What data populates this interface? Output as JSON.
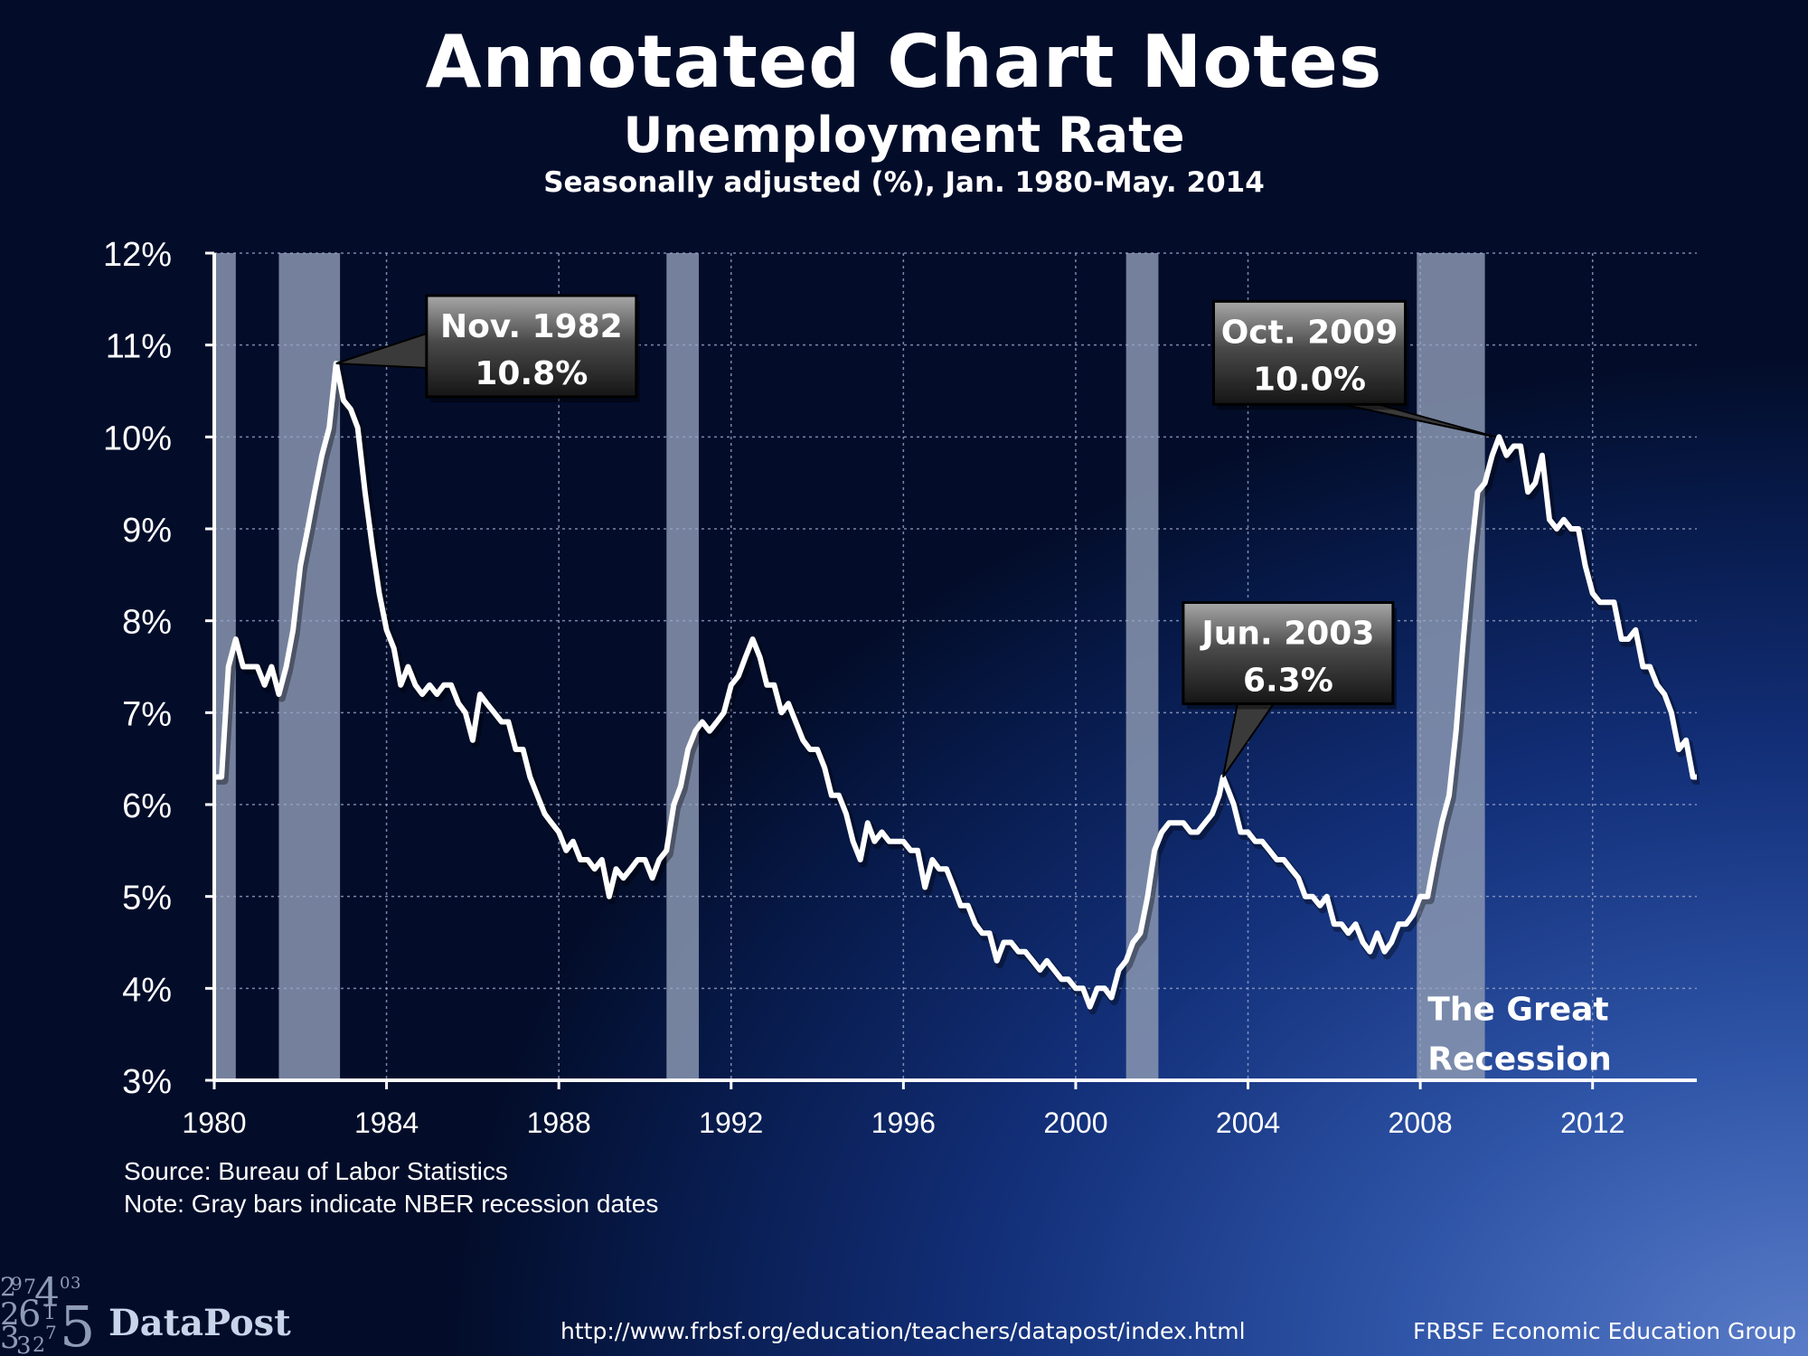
{
  "header": {
    "title": "Annotated Chart Notes",
    "subtitle": "Unemployment Rate",
    "description": "Seasonally adjusted (%), Jan. 1980-May. 2014"
  },
  "notes": {
    "source": "Source: Bureau of Labor Statistics",
    "recession": "Note: Gray bars indicate NBER recession dates"
  },
  "footer": {
    "url": "http://www.frbsf.org/education/teachers/datapost/index.html",
    "org": "FRBSF Economic Education Group",
    "logo_text": "DataPost"
  },
  "colors": {
    "line": "#ffffff",
    "recession_bar": "#8a97b0",
    "grid": "#9aa6c8",
    "callout_fill": "#2b2b2b"
  },
  "chart_data": {
    "type": "line",
    "x_range": [
      1980.0,
      2014.42
    ],
    "ylim": [
      3,
      12
    ],
    "y_ticks": [
      3,
      4,
      5,
      6,
      7,
      8,
      9,
      10,
      11,
      12
    ],
    "y_tick_labels": [
      "3%",
      "4%",
      "5%",
      "6%",
      "7%",
      "8%",
      "9%",
      "10%",
      "11%",
      "12%"
    ],
    "x_ticks": [
      1980,
      1984,
      1988,
      1992,
      1996,
      2000,
      2004,
      2008,
      2012
    ],
    "x_tick_labels": [
      "1980",
      "1984",
      "1988",
      "1992",
      "1996",
      "2000",
      "2004",
      "2008",
      "2012"
    ],
    "grid": true,
    "series": [
      {
        "points": [
          [
            1980.0,
            6.3
          ],
          [
            1980.17,
            6.3
          ],
          [
            1980.33,
            7.5
          ],
          [
            1980.5,
            7.8
          ],
          [
            1980.67,
            7.5
          ],
          [
            1980.83,
            7.5
          ],
          [
            1981.0,
            7.5
          ],
          [
            1981.17,
            7.3
          ],
          [
            1981.33,
            7.5
          ],
          [
            1981.5,
            7.2
          ],
          [
            1981.67,
            7.5
          ],
          [
            1981.83,
            7.9
          ],
          [
            1982.0,
            8.6
          ],
          [
            1982.17,
            9.0
          ],
          [
            1982.33,
            9.4
          ],
          [
            1982.5,
            9.8
          ],
          [
            1982.67,
            10.1
          ],
          [
            1982.83,
            10.8
          ],
          [
            1983.0,
            10.4
          ],
          [
            1983.17,
            10.3
          ],
          [
            1983.33,
            10.1
          ],
          [
            1983.5,
            9.4
          ],
          [
            1983.67,
            8.8
          ],
          [
            1983.83,
            8.3
          ],
          [
            1984.0,
            7.9
          ],
          [
            1984.17,
            7.7
          ],
          [
            1984.33,
            7.3
          ],
          [
            1984.5,
            7.5
          ],
          [
            1984.67,
            7.3
          ],
          [
            1984.83,
            7.2
          ],
          [
            1985.0,
            7.3
          ],
          [
            1985.17,
            7.2
          ],
          [
            1985.33,
            7.3
          ],
          [
            1985.5,
            7.3
          ],
          [
            1985.67,
            7.1
          ],
          [
            1985.83,
            7.0
          ],
          [
            1986.0,
            6.7
          ],
          [
            1986.17,
            7.2
          ],
          [
            1986.33,
            7.1
          ],
          [
            1986.5,
            7.0
          ],
          [
            1986.67,
            6.9
          ],
          [
            1986.83,
            6.9
          ],
          [
            1987.0,
            6.6
          ],
          [
            1987.17,
            6.6
          ],
          [
            1987.33,
            6.3
          ],
          [
            1987.5,
            6.1
          ],
          [
            1987.67,
            5.9
          ],
          [
            1987.83,
            5.8
          ],
          [
            1988.0,
            5.7
          ],
          [
            1988.17,
            5.5
          ],
          [
            1988.33,
            5.6
          ],
          [
            1988.5,
            5.4
          ],
          [
            1988.67,
            5.4
          ],
          [
            1988.83,
            5.3
          ],
          [
            1989.0,
            5.4
          ],
          [
            1989.17,
            5.0
          ],
          [
            1989.33,
            5.3
          ],
          [
            1989.5,
            5.2
          ],
          [
            1989.67,
            5.3
          ],
          [
            1989.83,
            5.4
          ],
          [
            1990.0,
            5.4
          ],
          [
            1990.17,
            5.2
          ],
          [
            1990.33,
            5.4
          ],
          [
            1990.5,
            5.5
          ],
          [
            1990.67,
            6.0
          ],
          [
            1990.83,
            6.2
          ],
          [
            1991.0,
            6.6
          ],
          [
            1991.17,
            6.8
          ],
          [
            1991.33,
            6.9
          ],
          [
            1991.5,
            6.8
          ],
          [
            1991.67,
            6.9
          ],
          [
            1991.83,
            7.0
          ],
          [
            1992.0,
            7.3
          ],
          [
            1992.17,
            7.4
          ],
          [
            1992.33,
            7.6
          ],
          [
            1992.5,
            7.8
          ],
          [
            1992.67,
            7.6
          ],
          [
            1992.83,
            7.3
          ],
          [
            1993.0,
            7.3
          ],
          [
            1993.17,
            7.0
          ],
          [
            1993.33,
            7.1
          ],
          [
            1993.5,
            6.9
          ],
          [
            1993.67,
            6.7
          ],
          [
            1993.83,
            6.6
          ],
          [
            1994.0,
            6.6
          ],
          [
            1994.17,
            6.4
          ],
          [
            1994.33,
            6.1
          ],
          [
            1994.5,
            6.1
          ],
          [
            1994.67,
            5.9
          ],
          [
            1994.83,
            5.6
          ],
          [
            1995.0,
            5.4
          ],
          [
            1995.17,
            5.8
          ],
          [
            1995.33,
            5.6
          ],
          [
            1995.5,
            5.7
          ],
          [
            1995.67,
            5.6
          ],
          [
            1995.83,
            5.6
          ],
          [
            1996.0,
            5.6
          ],
          [
            1996.17,
            5.5
          ],
          [
            1996.33,
            5.5
          ],
          [
            1996.5,
            5.1
          ],
          [
            1996.67,
            5.4
          ],
          [
            1996.83,
            5.3
          ],
          [
            1997.0,
            5.3
          ],
          [
            1997.17,
            5.1
          ],
          [
            1997.33,
            4.9
          ],
          [
            1997.5,
            4.9
          ],
          [
            1997.67,
            4.7
          ],
          [
            1997.83,
            4.6
          ],
          [
            1998.0,
            4.6
          ],
          [
            1998.17,
            4.3
          ],
          [
            1998.33,
            4.5
          ],
          [
            1998.5,
            4.5
          ],
          [
            1998.67,
            4.4
          ],
          [
            1998.83,
            4.4
          ],
          [
            1999.0,
            4.3
          ],
          [
            1999.17,
            4.2
          ],
          [
            1999.33,
            4.3
          ],
          [
            1999.5,
            4.2
          ],
          [
            1999.67,
            4.1
          ],
          [
            1999.83,
            4.1
          ],
          [
            2000.0,
            4.0
          ],
          [
            2000.17,
            4.0
          ],
          [
            2000.33,
            3.8
          ],
          [
            2000.5,
            4.0
          ],
          [
            2000.67,
            4.0
          ],
          [
            2000.83,
            3.9
          ],
          [
            2001.0,
            4.2
          ],
          [
            2001.17,
            4.3
          ],
          [
            2001.33,
            4.5
          ],
          [
            2001.5,
            4.6
          ],
          [
            2001.67,
            5.0
          ],
          [
            2001.83,
            5.5
          ],
          [
            2002.0,
            5.7
          ],
          [
            2002.17,
            5.8
          ],
          [
            2002.33,
            5.8
          ],
          [
            2002.5,
            5.8
          ],
          [
            2002.67,
            5.7
          ],
          [
            2002.83,
            5.7
          ],
          [
            2003.0,
            5.8
          ],
          [
            2003.17,
            5.9
          ],
          [
            2003.33,
            6.1
          ],
          [
            2003.42,
            6.3
          ],
          [
            2003.67,
            6.0
          ],
          [
            2003.83,
            5.7
          ],
          [
            2004.0,
            5.7
          ],
          [
            2004.17,
            5.6
          ],
          [
            2004.33,
            5.6
          ],
          [
            2004.5,
            5.5
          ],
          [
            2004.67,
            5.4
          ],
          [
            2004.83,
            5.4
          ],
          [
            2005.0,
            5.3
          ],
          [
            2005.17,
            5.2
          ],
          [
            2005.33,
            5.0
          ],
          [
            2005.5,
            5.0
          ],
          [
            2005.67,
            4.9
          ],
          [
            2005.83,
            5.0
          ],
          [
            2006.0,
            4.7
          ],
          [
            2006.17,
            4.7
          ],
          [
            2006.33,
            4.6
          ],
          [
            2006.5,
            4.7
          ],
          [
            2006.67,
            4.5
          ],
          [
            2006.83,
            4.4
          ],
          [
            2007.0,
            4.6
          ],
          [
            2007.17,
            4.4
          ],
          [
            2007.33,
            4.5
          ],
          [
            2007.5,
            4.7
          ],
          [
            2007.67,
            4.7
          ],
          [
            2007.83,
            4.8
          ],
          [
            2008.0,
            5.0
          ],
          [
            2008.17,
            5.0
          ],
          [
            2008.33,
            5.4
          ],
          [
            2008.5,
            5.8
          ],
          [
            2008.67,
            6.1
          ],
          [
            2008.83,
            6.8
          ],
          [
            2009.0,
            7.8
          ],
          [
            2009.17,
            8.7
          ],
          [
            2009.33,
            9.4
          ],
          [
            2009.5,
            9.5
          ],
          [
            2009.67,
            9.8
          ],
          [
            2009.83,
            10.0
          ],
          [
            2010.0,
            9.8
          ],
          [
            2010.17,
            9.9
          ],
          [
            2010.33,
            9.9
          ],
          [
            2010.5,
            9.4
          ],
          [
            2010.67,
            9.5
          ],
          [
            2010.83,
            9.8
          ],
          [
            2011.0,
            9.1
          ],
          [
            2011.17,
            9.0
          ],
          [
            2011.33,
            9.1
          ],
          [
            2011.5,
            9.0
          ],
          [
            2011.67,
            9.0
          ],
          [
            2011.83,
            8.6
          ],
          [
            2012.0,
            8.3
          ],
          [
            2012.17,
            8.2
          ],
          [
            2012.33,
            8.2
          ],
          [
            2012.5,
            8.2
          ],
          [
            2012.67,
            7.8
          ],
          [
            2012.83,
            7.8
          ],
          [
            2013.0,
            7.9
          ],
          [
            2013.17,
            7.5
          ],
          [
            2013.33,
            7.5
          ],
          [
            2013.5,
            7.3
          ],
          [
            2013.67,
            7.2
          ],
          [
            2013.83,
            7.0
          ],
          [
            2014.0,
            6.6
          ],
          [
            2014.17,
            6.7
          ],
          [
            2014.33,
            6.3
          ],
          [
            2014.42,
            6.3
          ]
        ]
      }
    ],
    "recessions": [
      [
        1980.0,
        1980.5
      ],
      [
        1981.5,
        1982.92
      ],
      [
        1990.5,
        1991.25
      ],
      [
        2001.17,
        2001.92
      ],
      [
        2007.92,
        2009.5
      ]
    ],
    "annotations": [
      {
        "label1": "Nov. 1982",
        "label2": "10.8%",
        "x": 1982.83,
        "y": 10.8
      },
      {
        "label1": "Oct. 2009",
        "label2": "10.0%",
        "x": 2009.75,
        "y": 10.0
      },
      {
        "label1": "Jun. 2003",
        "label2": "6.3%",
        "x": 2003.42,
        "y": 6.3
      }
    ],
    "recession_label": [
      "The Great",
      "Recession"
    ]
  }
}
